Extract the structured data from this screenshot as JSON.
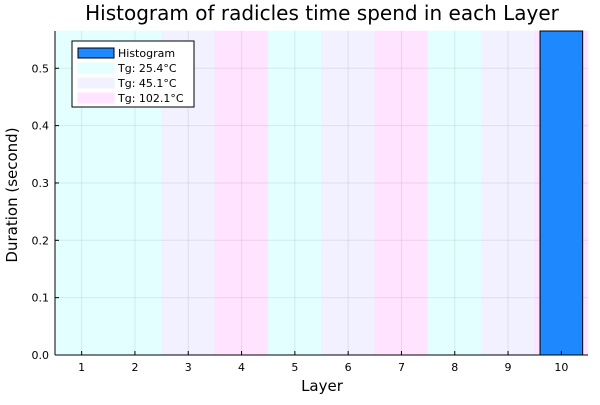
{
  "chart_data": {
    "type": "bar",
    "title": "Histogram of radicles time spend in each Layer",
    "xlabel": "Layer",
    "ylabel": "Duration (second)",
    "xlim": [
      0.5,
      10.5
    ],
    "ylim": [
      0,
      0.565
    ],
    "xticks": [
      "1",
      "2",
      "3",
      "4",
      "5",
      "6",
      "7",
      "8",
      "9",
      "10"
    ],
    "yticks": [
      "0.0",
      "0.1",
      "0.2",
      "0.3",
      "0.4",
      "0.5"
    ],
    "grid": true,
    "legend_position": "top-left",
    "bars": [
      {
        "x": 10,
        "value": 0.565
      }
    ],
    "bar_color": "#1e88ff",
    "layer_bands": [
      {
        "from": 0.5,
        "to": 2.5,
        "series": 1
      },
      {
        "from": 2.5,
        "to": 3.5,
        "series": 2
      },
      {
        "from": 3.5,
        "to": 4.5,
        "series": 3
      },
      {
        "from": 4.5,
        "to": 5.5,
        "series": 1
      },
      {
        "from": 5.5,
        "to": 6.5,
        "series": 2
      },
      {
        "from": 6.5,
        "to": 7.5,
        "series": 3
      },
      {
        "from": 7.5,
        "to": 8.5,
        "series": 1
      },
      {
        "from": 8.5,
        "to": 9.5,
        "series": 2
      },
      {
        "from": 9.5,
        "to": 10.5,
        "series": 3
      }
    ],
    "series": [
      {
        "name": "Histogram",
        "color": "#1e88ff"
      },
      {
        "name": "Tg: 25.4°C",
        "color": "#e3ffff"
      },
      {
        "name": "Tg: 45.1°C",
        "color": "#f1f1ff"
      },
      {
        "name": "Tg: 102.1°C",
        "color": "#ffe3ff"
      }
    ]
  }
}
